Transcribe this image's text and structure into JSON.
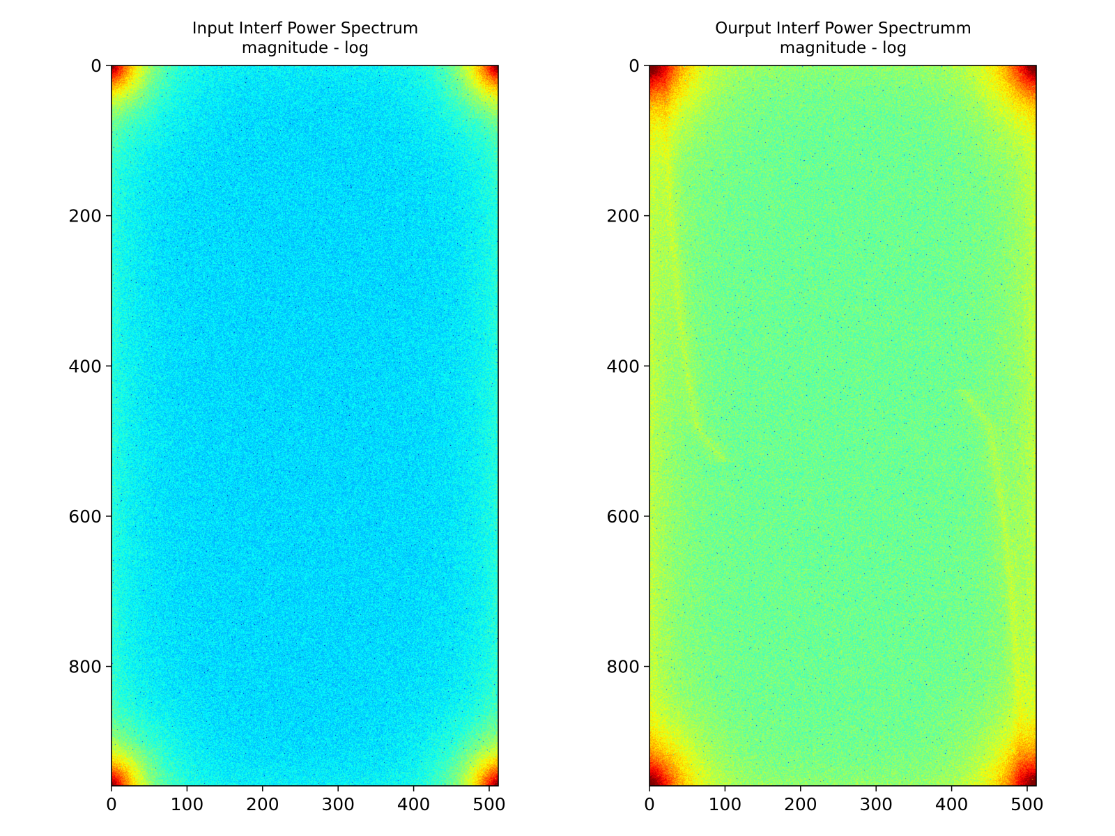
{
  "colors": {
    "background": "#ffffff",
    "axis": "#000000",
    "colormap": [
      "#0000ff",
      "#00ffff",
      "#50f0a0",
      "#ffff00",
      "#ff0000",
      "#800000"
    ]
  },
  "chart_data": [
    {
      "type": "heatmap",
      "title_line1": "Input Interf Power Spectrum",
      "title_line2": "magnitude - log",
      "xlabel": "",
      "ylabel": "",
      "xlim": [
        0,
        512
      ],
      "ylim": [
        959,
        0
      ],
      "xticks": [
        0,
        100,
        200,
        300,
        400,
        500
      ],
      "yticks": [
        0,
        200,
        400,
        600,
        800
      ],
      "grid": false,
      "field": {
        "center_level": 0.34,
        "corner_level": 0.92,
        "edge_level": 0.46,
        "noise": 0.12
      }
    },
    {
      "type": "heatmap",
      "title_line1": "Ourput Interf Power Spectrumm",
      "title_line2": "magnitude - log",
      "xlabel": "",
      "ylabel": "",
      "xlim": [
        0,
        512
      ],
      "ylim": [
        959,
        0
      ],
      "xticks": [
        0,
        100,
        200,
        300,
        400,
        500
      ],
      "yticks": [
        0,
        200,
        400,
        600,
        800
      ],
      "grid": false,
      "field": {
        "center_level": 0.48,
        "corner_level": 1.0,
        "edge_level": 0.62,
        "noise": 0.12
      }
    }
  ]
}
